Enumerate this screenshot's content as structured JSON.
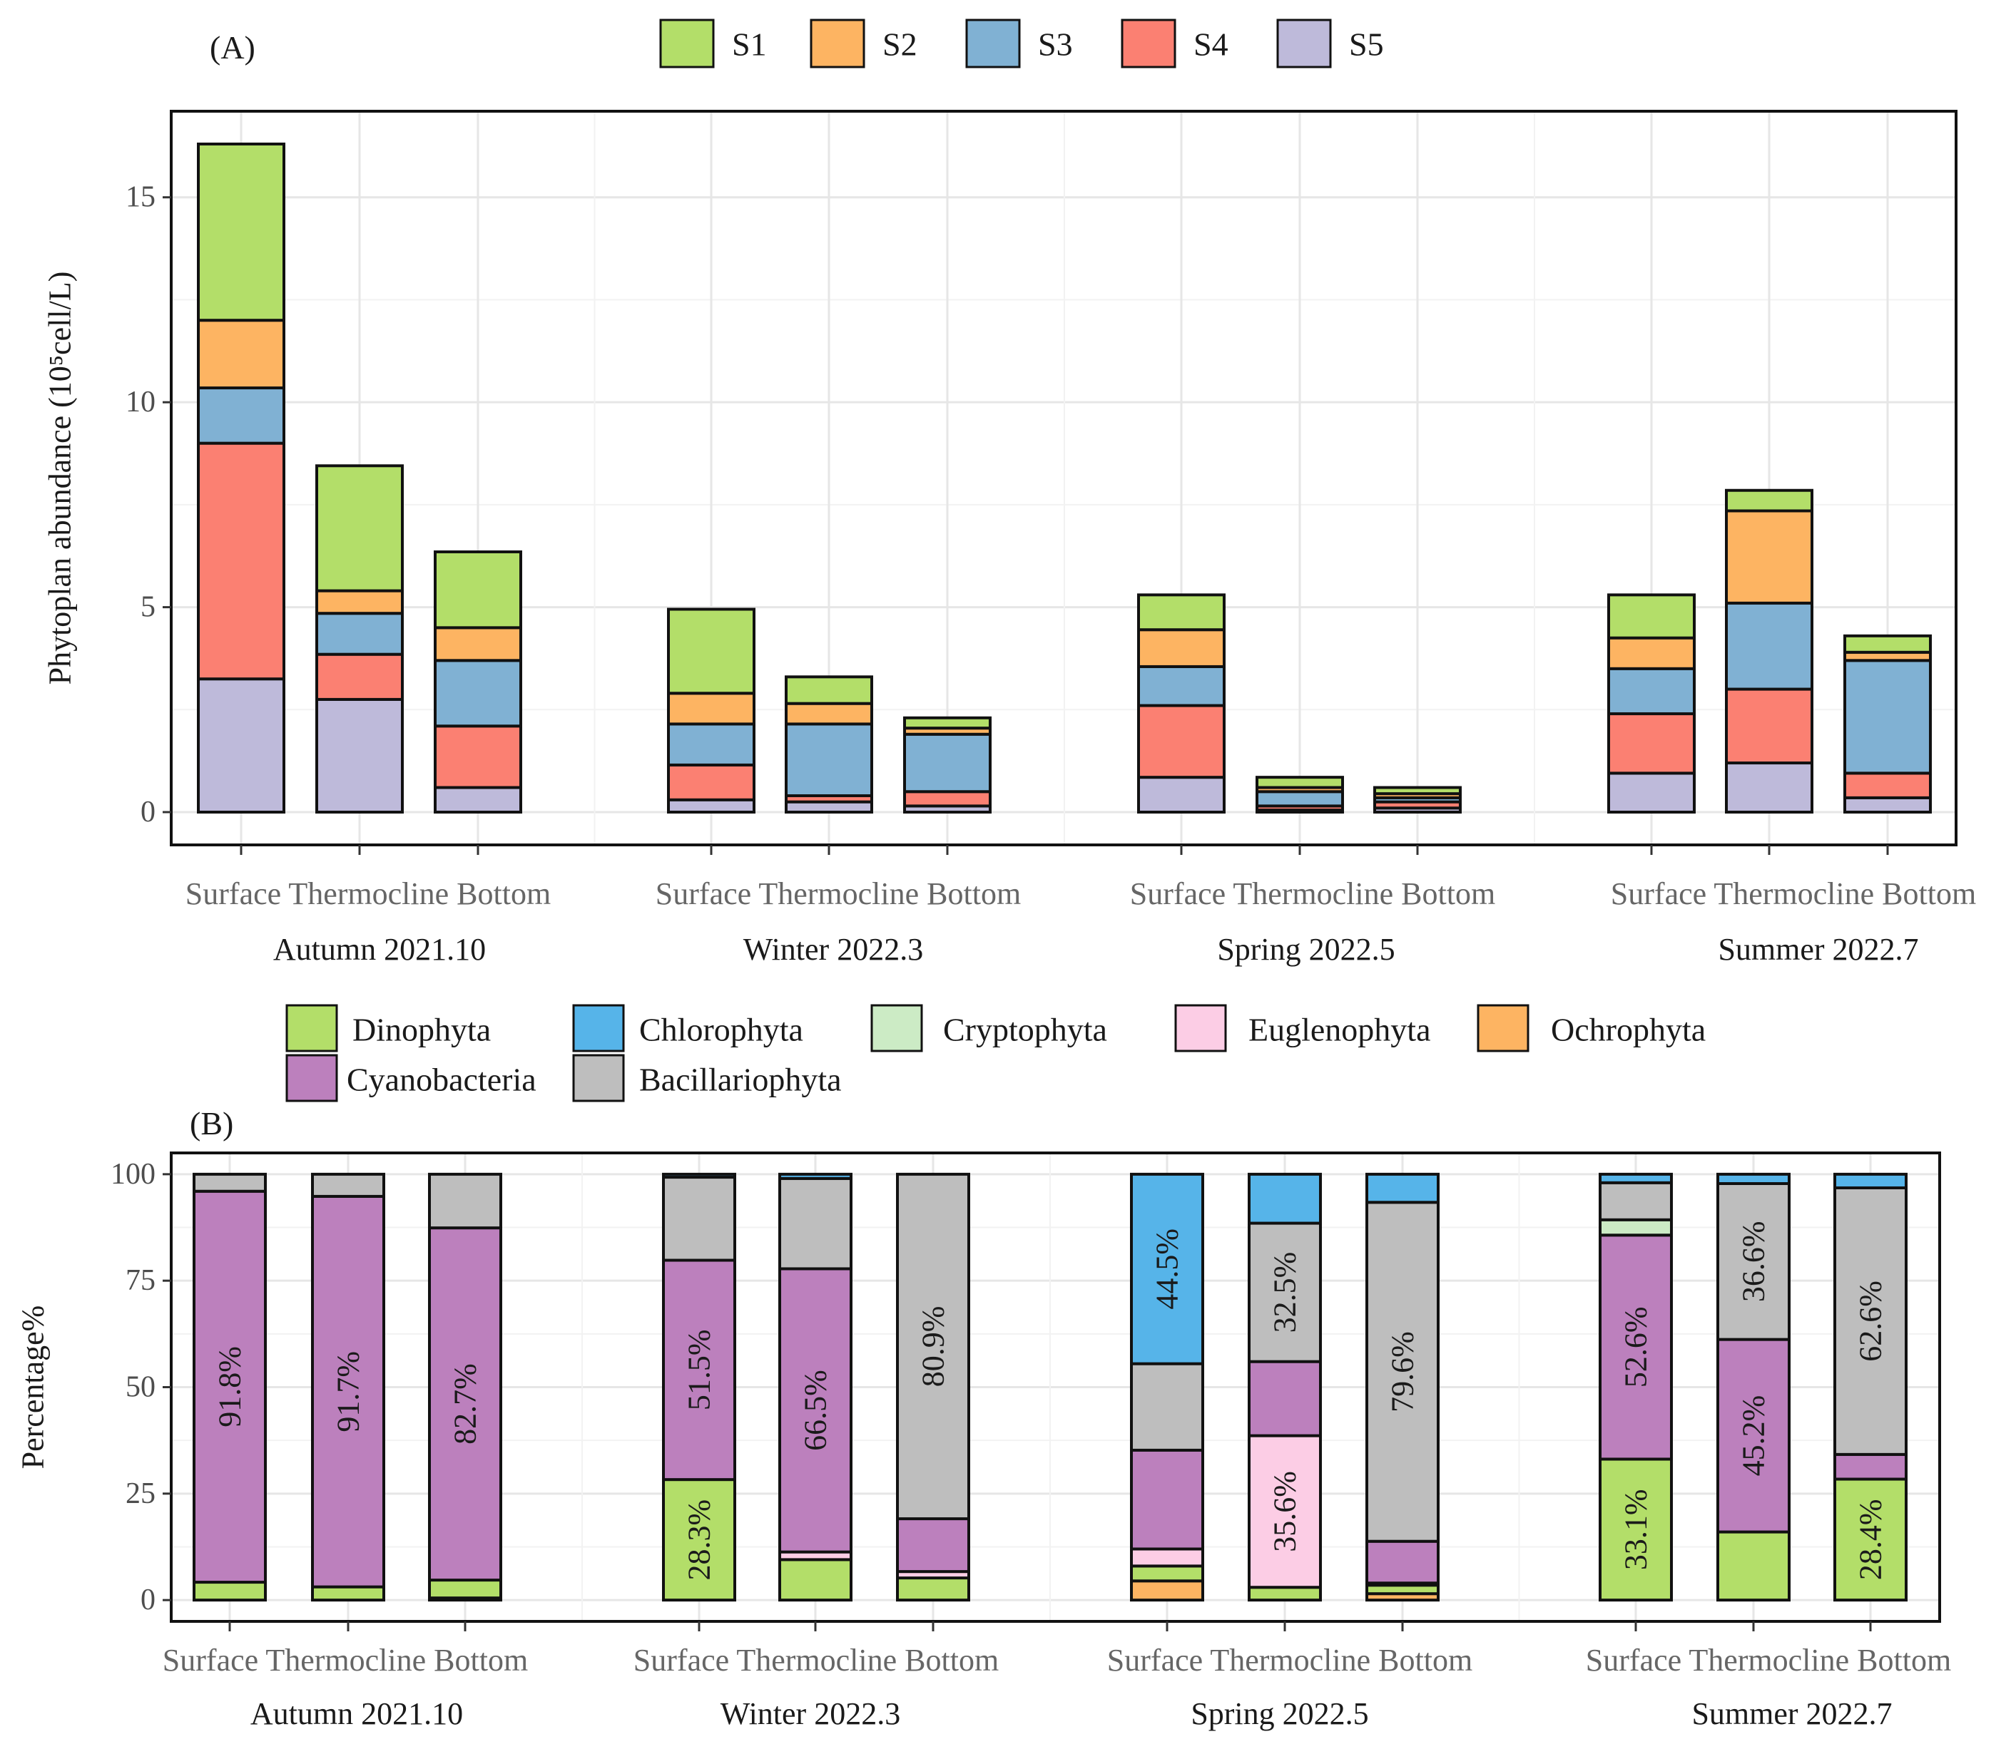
{
  "colors": {
    "S1": "#b3de69",
    "S2": "#fdb462",
    "S3": "#80b1d3",
    "S4": "#fb8072",
    "S5": "#bebada",
    "Dinophyta": "#b3de69",
    "Chlorophyta": "#56b4e9",
    "Cryptophyta": "#ccebc5",
    "Euglenophyta": "#fccde5",
    "Ochrophyta": "#fdb462",
    "Cyanobacteria": "#bc80bd",
    "Bacillariophyta": "#bebebe"
  },
  "chart_data": [
    {
      "type": "bar",
      "stacked": true,
      "panel_label": "(A)",
      "title": "",
      "xlabel": "",
      "ylabel": "Phytoplan abundance (10⁵cell/L)",
      "ylim": [
        -0.8,
        17.1
      ],
      "yticks": [
        0,
        5,
        10,
        15
      ],
      "legend": [
        "S1",
        "S2",
        "S3",
        "S4",
        "S5"
      ],
      "legend_position": "top",
      "seasons": [
        "Autumn 2021.10",
        "Winter 2022.3",
        "Spring 2022.5",
        "Summer 2022.7"
      ],
      "categories": [
        "Surface",
        "Thermocline",
        "Bottom"
      ],
      "stack_order": [
        "S5",
        "S4",
        "S3",
        "S2",
        "S1"
      ],
      "groups": [
        {
          "season": "Autumn 2021.10",
          "bars": [
            {
              "layer": "Surface",
              "values": {
                "S5": 3.25,
                "S4": 5.75,
                "S3": 1.35,
                "S2": 1.65,
                "S1": 4.3
              }
            },
            {
              "layer": "Thermocline",
              "values": {
                "S5": 2.75,
                "S4": 1.1,
                "S3": 1.0,
                "S2": 0.55,
                "S1": 3.05
              }
            },
            {
              "layer": "Bottom",
              "values": {
                "S5": 0.6,
                "S4": 1.5,
                "S3": 1.6,
                "S2": 0.8,
                "S1": 1.85
              }
            }
          ]
        },
        {
          "season": "Winter 2022.3",
          "bars": [
            {
              "layer": "Surface",
              "values": {
                "S5": 0.3,
                "S4": 0.85,
                "S3": 1.0,
                "S2": 0.75,
                "S1": 2.05
              }
            },
            {
              "layer": "Thermocline",
              "values": {
                "S5": 0.25,
                "S4": 0.15,
                "S3": 1.75,
                "S2": 0.5,
                "S1": 0.65
              }
            },
            {
              "layer": "Bottom",
              "values": {
                "S5": 0.15,
                "S4": 0.35,
                "S3": 1.4,
                "S2": 0.15,
                "S1": 0.25
              }
            }
          ]
        },
        {
          "season": "Spring 2022.5",
          "bars": [
            {
              "layer": "Surface",
              "values": {
                "S5": 0.85,
                "S4": 1.75,
                "S3": 0.95,
                "S2": 0.9,
                "S1": 0.85
              }
            },
            {
              "layer": "Thermocline",
              "values": {
                "S5": 0.05,
                "S4": 0.1,
                "S3": 0.35,
                "S2": 0.1,
                "S1": 0.25
              }
            },
            {
              "layer": "Bottom",
              "values": {
                "S5": 0.1,
                "S4": 0.15,
                "S3": 0.1,
                "S2": 0.1,
                "S1": 0.15
              }
            }
          ]
        },
        {
          "season": "Summer 2022.7",
          "bars": [
            {
              "layer": "Surface",
              "values": {
                "S5": 0.95,
                "S4": 1.45,
                "S3": 1.1,
                "S2": 0.75,
                "S1": 1.05
              }
            },
            {
              "layer": "Thermocline",
              "values": {
                "S5": 1.2,
                "S4": 1.8,
                "S3": 2.1,
                "S2": 2.25,
                "S1": 0.5
              }
            },
            {
              "layer": "Bottom",
              "values": {
                "S5": 0.35,
                "S4": 0.6,
                "S3": 2.75,
                "S2": 0.2,
                "S1": 0.4
              }
            }
          ]
        }
      ]
    },
    {
      "type": "bar",
      "stacked": true,
      "panel_label": "(B)",
      "title": "",
      "xlabel": "",
      "ylabel": "Percentage%",
      "ylim": [
        -5,
        105
      ],
      "yticks": [
        0,
        25,
        50,
        75,
        100
      ],
      "legend": [
        "Dinophyta",
        "Chlorophyta",
        "Cryptophyta",
        "Euglenophyta",
        "Ochrophyta",
        "Cyanobacteria",
        "Bacillariophyta"
      ],
      "legend_position": "top",
      "seasons": [
        "Autumn 2021.10",
        "Winter 2022.3",
        "Spring 2022.5",
        "Summer 2022.7"
      ],
      "categories": [
        "Surface",
        "Thermocline",
        "Bottom"
      ],
      "stack_order": [
        "Ochrophyta",
        "Dinophyta",
        "Euglenophyta",
        "Cyanobacteria",
        "Cryptophyta",
        "Bacillariophyta",
        "Chlorophyta"
      ],
      "groups": [
        {
          "season": "Autumn 2021.10",
          "bars": [
            {
              "layer": "Surface",
              "values": {
                "Ochrophyta": 0,
                "Dinophyta": 4.2,
                "Euglenophyta": 0,
                "Cyanobacteria": 91.8,
                "Cryptophyta": 0,
                "Bacillariophyta": 4.0,
                "Chlorophyta": 0
              }
            },
            {
              "layer": "Thermocline",
              "values": {
                "Ochrophyta": 0,
                "Dinophyta": 3.1,
                "Euglenophyta": 0,
                "Cyanobacteria": 91.7,
                "Cryptophyta": 0,
                "Bacillariophyta": 5.2,
                "Chlorophyta": 0
              }
            },
            {
              "layer": "Bottom",
              "values": {
                "Ochrophyta": 0.5,
                "Dinophyta": 4.2,
                "Euglenophyta": 0,
                "Cyanobacteria": 82.7,
                "Cryptophyta": 0,
                "Bacillariophyta": 12.6,
                "Chlorophyta": 0
              }
            }
          ]
        },
        {
          "season": "Winter 2022.3",
          "bars": [
            {
              "layer": "Surface",
              "values": {
                "Ochrophyta": 0,
                "Dinophyta": 28.3,
                "Euglenophyta": 0,
                "Cyanobacteria": 51.5,
                "Cryptophyta": 0,
                "Bacillariophyta": 19.5,
                "Chlorophyta": 0.7
              }
            },
            {
              "layer": "Thermocline",
              "values": {
                "Ochrophyta": 0,
                "Dinophyta": 9.5,
                "Euglenophyta": 1.8,
                "Cyanobacteria": 66.5,
                "Cryptophyta": 0,
                "Bacillariophyta": 21.2,
                "Chlorophyta": 1.0
              }
            },
            {
              "layer": "Bottom",
              "values": {
                "Ochrophyta": 0,
                "Dinophyta": 5.2,
                "Euglenophyta": 1.5,
                "Cyanobacteria": 12.4,
                "Cryptophyta": 0,
                "Bacillariophyta": 80.9,
                "Chlorophyta": 0
              }
            }
          ]
        },
        {
          "season": "Spring 2022.5",
          "bars": [
            {
              "layer": "Surface",
              "values": {
                "Ochrophyta": 4.5,
                "Dinophyta": 3.5,
                "Euglenophyta": 4.0,
                "Cyanobacteria": 23.2,
                "Cryptophyta": 0,
                "Bacillariophyta": 20.3,
                "Chlorophyta": 44.5
              }
            },
            {
              "layer": "Thermocline",
              "values": {
                "Ochrophyta": 0,
                "Dinophyta": 3.0,
                "Euglenophyta": 35.6,
                "Cyanobacteria": 17.4,
                "Cryptophyta": 0,
                "Bacillariophyta": 32.5,
                "Chlorophyta": 11.5
              }
            },
            {
              "layer": "Bottom",
              "values": {
                "Ochrophyta": 1.5,
                "Dinophyta": 2.0,
                "Euglenophyta": 0.5,
                "Cyanobacteria": 9.8,
                "Cryptophyta": 0,
                "Bacillariophyta": 79.6,
                "Chlorophyta": 6.6
              }
            }
          ]
        },
        {
          "season": "Summer 2022.7",
          "bars": [
            {
              "layer": "Surface",
              "values": {
                "Ochrophyta": 0,
                "Dinophyta": 33.1,
                "Euglenophyta": 0,
                "Cyanobacteria": 52.6,
                "Cryptophyta": 3.6,
                "Bacillariophyta": 8.7,
                "Chlorophyta": 2.0
              }
            },
            {
              "layer": "Thermocline",
              "values": {
                "Ochrophyta": 0,
                "Dinophyta": 16.0,
                "Euglenophyta": 0,
                "Cyanobacteria": 45.2,
                "Cryptophyta": 0,
                "Bacillariophyta": 36.6,
                "Chlorophyta": 2.2
              }
            },
            {
              "layer": "Bottom",
              "values": {
                "Ochrophyta": 0,
                "Dinophyta": 28.4,
                "Euglenophyta": 0,
                "Cyanobacteria": 5.8,
                "Cryptophyta": 0,
                "Bacillariophyta": 62.6,
                "Chlorophyta": 3.2
              }
            }
          ]
        }
      ],
      "bar_labels": [
        {
          "group": 0,
          "bar": 0,
          "segment": "Cyanobacteria",
          "text": "91.8%"
        },
        {
          "group": 0,
          "bar": 1,
          "segment": "Cyanobacteria",
          "text": "91.7%"
        },
        {
          "group": 0,
          "bar": 2,
          "segment": "Cyanobacteria",
          "text": "82.7%"
        },
        {
          "group": 1,
          "bar": 0,
          "segment": "Cyanobacteria",
          "text": "51.5%"
        },
        {
          "group": 1,
          "bar": 0,
          "segment": "Dinophyta",
          "text": "28.3%"
        },
        {
          "group": 1,
          "bar": 1,
          "segment": "Cyanobacteria",
          "text": "66.5%"
        },
        {
          "group": 1,
          "bar": 2,
          "segment": "Bacillariophyta",
          "text": "80.9%"
        },
        {
          "group": 2,
          "bar": 0,
          "segment": "Chlorophyta",
          "text": "44.5%"
        },
        {
          "group": 2,
          "bar": 1,
          "segment": "Bacillariophyta",
          "text": "32.5%"
        },
        {
          "group": 2,
          "bar": 1,
          "segment": "Euglenophyta",
          "text": "35.6%"
        },
        {
          "group": 2,
          "bar": 2,
          "segment": "Bacillariophyta",
          "text": "79.6%"
        },
        {
          "group": 3,
          "bar": 0,
          "segment": "Cyanobacteria",
          "text": "52.6%"
        },
        {
          "group": 3,
          "bar": 0,
          "segment": "Dinophyta",
          "text": "33.1%"
        },
        {
          "group": 3,
          "bar": 1,
          "segment": "Bacillariophyta",
          "text": "36.6%"
        },
        {
          "group": 3,
          "bar": 1,
          "segment": "Cyanobacteria",
          "text": "45.2%"
        },
        {
          "group": 3,
          "bar": 2,
          "segment": "Bacillariophyta",
          "text": "62.6%"
        },
        {
          "group": 3,
          "bar": 2,
          "segment": "Dinophyta",
          "text": "28.4%"
        }
      ]
    }
  ]
}
